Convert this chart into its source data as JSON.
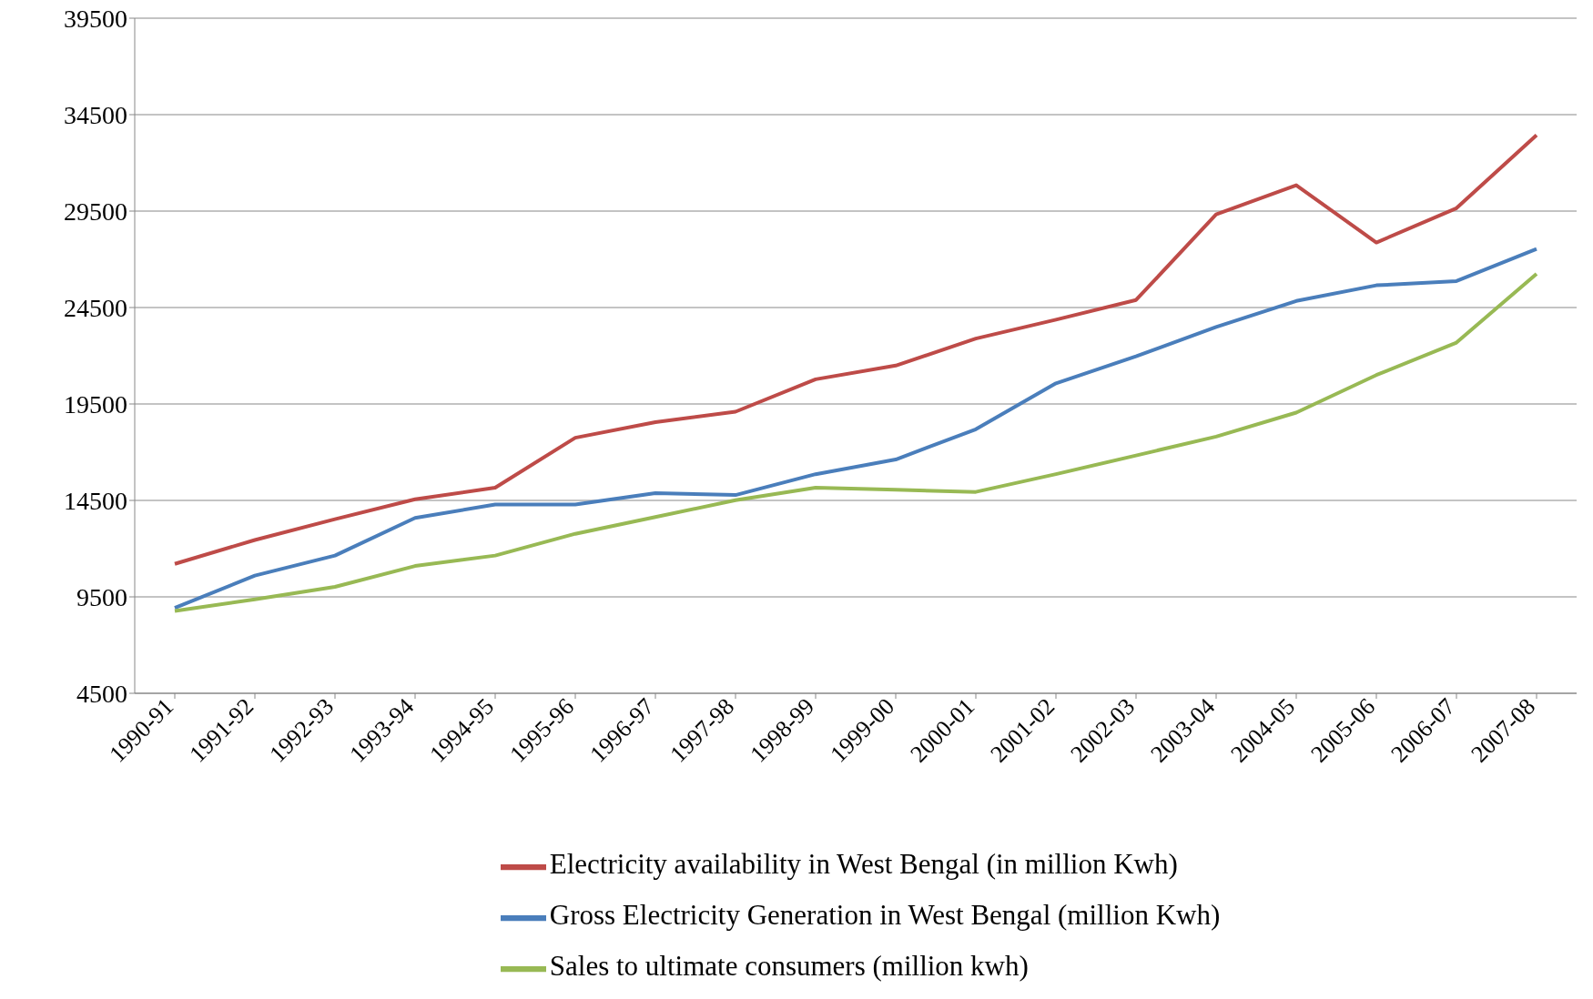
{
  "chart_data": {
    "type": "line",
    "categories": [
      "1990-91",
      "1991-92",
      "1992-93",
      "1993-94",
      "1994-95",
      "1995-96",
      "1996-97",
      "1997-98",
      "1998-99",
      "1999-00",
      "2000-01",
      "2001-02",
      "2002-03",
      "2003-04",
      "2004-05",
      "2005-06",
      "2006-07",
      "2007-08"
    ],
    "series": [
      {
        "name": "Gross Electricity Generation in West Bengal (million Kwh)",
        "color": "#4a7ebb",
        "values": [
          8930,
          10600,
          11640,
          13590,
          14290,
          14290,
          14880,
          14780,
          15860,
          16620,
          18190,
          20570,
          21970,
          23490,
          24840,
          25650,
          25870,
          27540
        ]
      },
      {
        "name": "Electricity availability in West Bengal (in million Kwh)",
        "color": "#be4b48",
        "values": [
          11210,
          12450,
          13530,
          14560,
          15160,
          17750,
          18560,
          19100,
          20780,
          21490,
          22890,
          23870,
          24890,
          29330,
          30840,
          27870,
          29650,
          33440
        ]
      },
      {
        "name": "Sales to ultimate consumers (million kwh)",
        "color": "#98b954",
        "values": [
          8770,
          9370,
          10020,
          11100,
          11640,
          12770,
          13640,
          14510,
          15160,
          15050,
          14940,
          15860,
          16830,
          17810,
          19050,
          21000,
          22680,
          26250
        ]
      }
    ],
    "ylim": [
      4500,
      39500
    ],
    "yticks": [
      4500,
      9500,
      14500,
      19500,
      24500,
      29500,
      34500,
      39500
    ],
    "grid": "y",
    "legend": "bottom",
    "marker": "none",
    "line_style": "solid"
  }
}
